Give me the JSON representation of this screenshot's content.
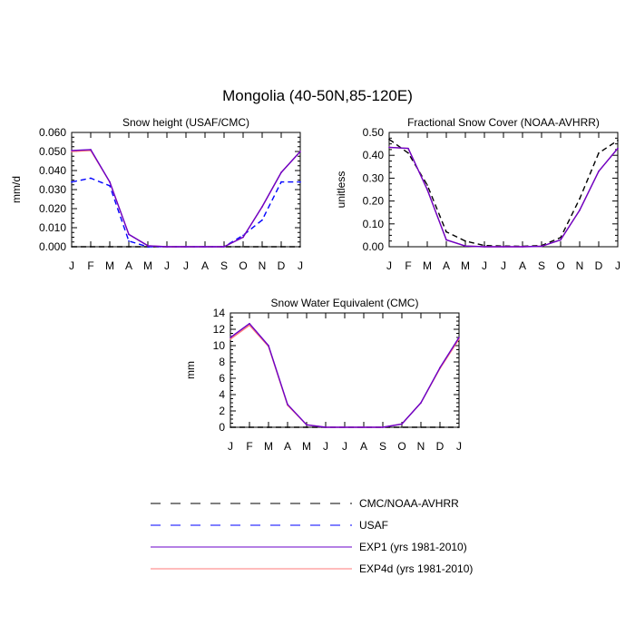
{
  "figure": {
    "title": "Mongolia (40-50N,85-120E)"
  },
  "colors": {
    "cmc_noaa": "#000000",
    "usaf": "#0000ff",
    "exp1": "#6a00c8",
    "exp4d": "#ff7a7a"
  },
  "legend": {
    "items": [
      {
        "label": "CMC/NOAA-AVHRR",
        "color": "#000000",
        "dash": true
      },
      {
        "label": "USAF",
        "color": "#0000ff",
        "dash": true
      },
      {
        "label": "EXP1 (yrs 1981-2010)",
        "color": "#6a00c8",
        "dash": false
      },
      {
        "label": "EXP4d (yrs 1981-2010)",
        "color": "#ff7a7a",
        "dash": false
      }
    ]
  },
  "chart_data": [
    {
      "type": "line",
      "title": "Snow height (USAF/CMC)",
      "xlabel": "",
      "ylabel": "mm/d",
      "categories": [
        "J",
        "F",
        "M",
        "A",
        "M",
        "J",
        "J",
        "A",
        "S",
        "O",
        "N",
        "D",
        "J"
      ],
      "ylim": [
        0,
        0.06
      ],
      "yticks": [
        "0.000",
        "0.010",
        "0.020",
        "0.030",
        "0.040",
        "0.050",
        "0.060"
      ],
      "yticks_values": [
        0,
        0.01,
        0.02,
        0.03,
        0.04,
        0.05,
        0.06
      ],
      "series": [
        {
          "name": "CMC/NOAA-AVHRR",
          "color": "#000000",
          "dash": true,
          "values": [
            0,
            0,
            0,
            0,
            0,
            0,
            0,
            0,
            0,
            0,
            0,
            0,
            0
          ]
        },
        {
          "name": "USAF",
          "color": "#0000ff",
          "dash": true,
          "values": [
            0.034,
            0.036,
            0.032,
            0.003,
            0,
            0,
            0,
            0,
            0,
            0.006,
            0.014,
            0.034,
            0.034
          ]
        },
        {
          "name": "EXP4d (yrs 1981-2010)",
          "color": "#ff7a7a",
          "dash": false,
          "values": [
            0.05,
            0.0505,
            0.034,
            0.0065,
            0.0005,
            0,
            0,
            0,
            0,
            0.005,
            0.021,
            0.039,
            0.05
          ]
        },
        {
          "name": "EXP1 (yrs 1981-2010)",
          "color": "#6a00c8",
          "dash": false,
          "values": [
            0.0505,
            0.051,
            0.034,
            0.0065,
            0.0005,
            0,
            0,
            0,
            0,
            0.005,
            0.021,
            0.039,
            0.05
          ]
        }
      ]
    },
    {
      "type": "line",
      "title": "Fractional Snow Cover (NOAA-AVHRR)",
      "xlabel": "",
      "ylabel": "unitless",
      "categories": [
        "J",
        "F",
        "M",
        "A",
        "M",
        "J",
        "J",
        "A",
        "S",
        "O",
        "N",
        "D",
        "J"
      ],
      "ylim": [
        0,
        0.5
      ],
      "yticks": [
        "0.00",
        "0.10",
        "0.20",
        "0.30",
        "0.40",
        "0.50"
      ],
      "yticks_values": [
        0,
        0.1,
        0.2,
        0.3,
        0.4,
        0.5
      ],
      "series": [
        {
          "name": "CMC/NOAA-AVHRR",
          "color": "#000000",
          "dash": true,
          "values": [
            0.47,
            0.41,
            0.27,
            0.065,
            0.025,
            0.005,
            0.003,
            0.002,
            0.005,
            0.04,
            0.21,
            0.41,
            0.465
          ]
        },
        {
          "name": "EXP4d (yrs 1981-2010)",
          "color": "#ff7a7a",
          "dash": false,
          "values": [
            0.435,
            0.43,
            0.25,
            0.03,
            0.003,
            0,
            0,
            0,
            0.002,
            0.03,
            0.16,
            0.33,
            0.43
          ]
        },
        {
          "name": "EXP1 (yrs 1981-2010)",
          "color": "#6a00c8",
          "dash": false,
          "values": [
            0.435,
            0.43,
            0.25,
            0.03,
            0.003,
            0,
            0,
            0,
            0.002,
            0.03,
            0.16,
            0.33,
            0.43
          ]
        }
      ]
    },
    {
      "type": "line",
      "title": "Snow Water Equivalent (CMC)",
      "xlabel": "",
      "ylabel": "mm",
      "categories": [
        "J",
        "F",
        "M",
        "A",
        "M",
        "J",
        "J",
        "A",
        "S",
        "O",
        "N",
        "D",
        "J"
      ],
      "ylim": [
        0,
        14
      ],
      "yticks": [
        "0",
        "2",
        "4",
        "6",
        "8",
        "10",
        "12",
        "14"
      ],
      "yticks_values": [
        0,
        2,
        4,
        6,
        8,
        10,
        12,
        14
      ],
      "series": [
        {
          "name": "CMC/NOAA-AVHRR",
          "color": "#000000",
          "dash": true,
          "values": [
            0,
            0,
            0,
            0,
            0,
            0,
            0,
            0,
            0,
            0,
            0,
            0,
            0
          ]
        },
        {
          "name": "EXP4d (yrs 1981-2010)",
          "color": "#ff7a7a",
          "dash": false,
          "values": [
            10.8,
            12.5,
            9.9,
            2.7,
            0.3,
            0,
            0,
            0,
            0,
            0.4,
            3,
            7.2,
            10.8
          ]
        },
        {
          "name": "EXP1 (yrs 1981-2010)",
          "color": "#6a00c8",
          "dash": false,
          "values": [
            11,
            12.7,
            10,
            2.8,
            0.3,
            0,
            0,
            0,
            0,
            0.4,
            3,
            7.3,
            11
          ]
        }
      ]
    }
  ]
}
